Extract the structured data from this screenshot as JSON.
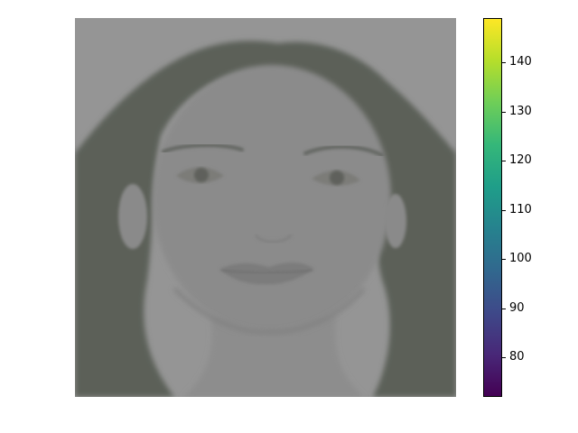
{
  "figure": {
    "image": {
      "subject": "grayscale portrait of a woman with long dark hair, rendered with a viridis colormap at low contrast",
      "background_color": "#959595",
      "hair_color": "#5c6159",
      "skin_color": "#8b8b8b"
    },
    "colorbar": {
      "colormap": "viridis",
      "min": 72,
      "max": 149,
      "ticks": [
        {
          "value": 80,
          "label": "80"
        },
        {
          "value": 90,
          "label": "90"
        },
        {
          "value": 100,
          "label": "100"
        },
        {
          "value": 110,
          "label": "110"
        },
        {
          "value": 120,
          "label": "120"
        },
        {
          "value": 130,
          "label": "130"
        },
        {
          "value": 140,
          "label": "140"
        }
      ],
      "gradient_colors": [
        "#440154",
        "#482878",
        "#3e4989",
        "#31688e",
        "#26828e",
        "#1f9e89",
        "#35b779",
        "#6ece58",
        "#b5de2b",
        "#fde725"
      ]
    }
  }
}
